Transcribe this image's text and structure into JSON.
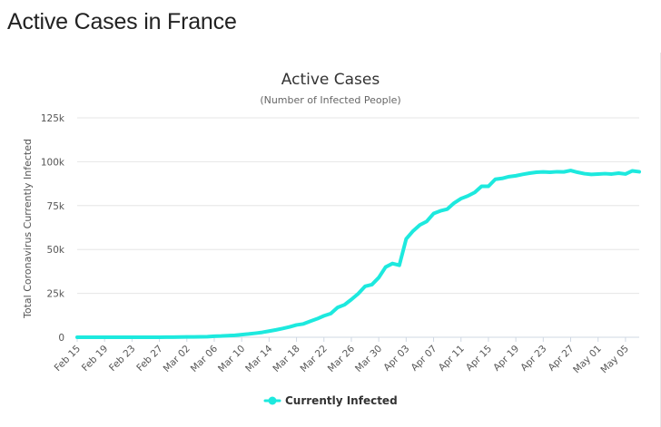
{
  "page": {
    "title": "Active Cases in France"
  },
  "chart_data": {
    "type": "line",
    "title": "Active Cases",
    "subtitle": "(Number of Infected People)",
    "ylabel": "Total Coronavirus Currently Infected",
    "xlabel": "",
    "ylim": [
      0,
      125000
    ],
    "y_ticks": [
      {
        "value": 0,
        "label": "0"
      },
      {
        "value": 25000,
        "label": "25k"
      },
      {
        "value": 50000,
        "label": "50k"
      },
      {
        "value": 75000,
        "label": "75k"
      },
      {
        "value": 100000,
        "label": "100k"
      },
      {
        "value": 125000,
        "label": "125k"
      }
    ],
    "x_tick_labels": [
      "Feb 15",
      "Feb 19",
      "Feb 23",
      "Feb 27",
      "Mar 02",
      "Mar 06",
      "Mar 10",
      "Mar 14",
      "Mar 18",
      "Mar 22",
      "Mar 26",
      "Mar 30",
      "Apr 03",
      "Apr 07",
      "Apr 11",
      "Apr 15",
      "Apr 19",
      "Apr 23",
      "Apr 27",
      "May 01",
      "May 05"
    ],
    "grid": true,
    "legend_position": "bottom-center",
    "series": [
      {
        "name": "Currently Infected",
        "color": "#1de9de",
        "x": [
          "Feb 15",
          "Feb 16",
          "Feb 17",
          "Feb 18",
          "Feb 19",
          "Feb 20",
          "Feb 21",
          "Feb 22",
          "Feb 23",
          "Feb 24",
          "Feb 25",
          "Feb 26",
          "Feb 27",
          "Feb 28",
          "Feb 29",
          "Mar 01",
          "Mar 02",
          "Mar 03",
          "Mar 04",
          "Mar 05",
          "Mar 06",
          "Mar 07",
          "Mar 08",
          "Mar 09",
          "Mar 10",
          "Mar 11",
          "Mar 12",
          "Mar 13",
          "Mar 14",
          "Mar 15",
          "Mar 16",
          "Mar 17",
          "Mar 18",
          "Mar 19",
          "Mar 20",
          "Mar 21",
          "Mar 22",
          "Mar 23",
          "Mar 24",
          "Mar 25",
          "Mar 26",
          "Mar 27",
          "Mar 28",
          "Mar 29",
          "Mar 30",
          "Mar 31",
          "Apr 01",
          "Apr 02",
          "Apr 03",
          "Apr 04",
          "Apr 05",
          "Apr 06",
          "Apr 07",
          "Apr 08",
          "Apr 09",
          "Apr 10",
          "Apr 11",
          "Apr 12",
          "Apr 13",
          "Apr 14",
          "Apr 15",
          "Apr 16",
          "Apr 17",
          "Apr 18",
          "Apr 19",
          "Apr 20",
          "Apr 21",
          "Apr 22",
          "Apr 23",
          "Apr 24",
          "Apr 25",
          "Apr 26",
          "Apr 27",
          "Apr 28",
          "Apr 29",
          "Apr 30",
          "May 01",
          "May 02",
          "May 03",
          "May 04",
          "May 05",
          "May 06",
          "May 07"
        ],
        "values": [
          6,
          6,
          6,
          6,
          6,
          6,
          6,
          6,
          6,
          6,
          9,
          12,
          25,
          44,
          70,
          110,
          170,
          190,
          260,
          340,
          560,
          680,
          900,
          1100,
          1500,
          1850,
          2300,
          2800,
          3500,
          4200,
          5000,
          5900,
          7000,
          7600,
          9100,
          10500,
          12200,
          13500,
          17000,
          18500,
          21500,
          24800,
          29000,
          30000,
          34000,
          40000,
          42000,
          41000,
          56000,
          60500,
          64000,
          66000,
          70500,
          72000,
          73000,
          76500,
          79000,
          80500,
          82500,
          86000,
          86000,
          90000,
          90500,
          91500,
          92000,
          92800,
          93500,
          94000,
          94200,
          94000,
          94300,
          94200,
          95000,
          94000,
          93200,
          92800,
          93000,
          93200,
          93000,
          93500,
          93000,
          94800,
          94300
        ]
      }
    ]
  }
}
